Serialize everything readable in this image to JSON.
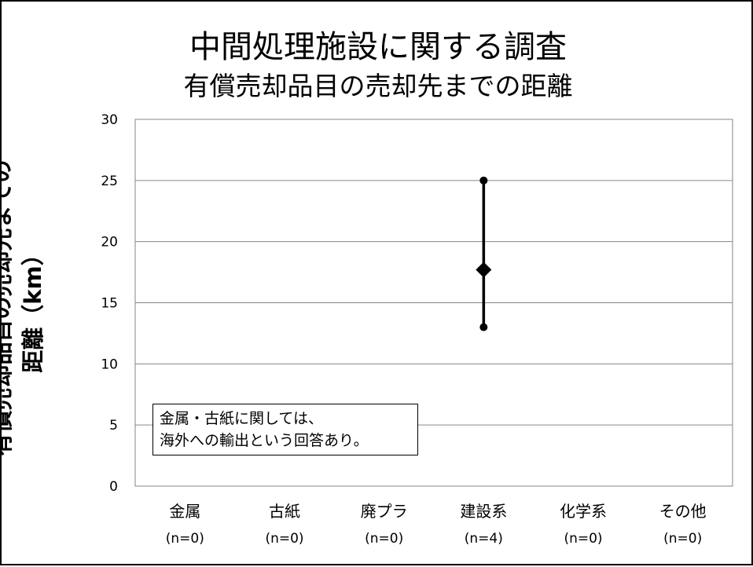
{
  "slide": {
    "title_line1": "中間処理施設に関する調査",
    "title_line2": "有償売却品目の売却先までの距離"
  },
  "note": {
    "line1": "金属・古紙に関しては、",
    "line2": "海外への輸出という回答あり。"
  },
  "chart_data": {
    "type": "scatter",
    "ylabel_line1": "有償売却品目の売却先までの",
    "ylabel_line2": "距離（km）",
    "ylim": [
      0,
      30
    ],
    "yticks": [
      0,
      5,
      10,
      15,
      20,
      25,
      30
    ],
    "grid": true,
    "categories": [
      {
        "name": "金属",
        "n": "(n=0)"
      },
      {
        "name": "古紙",
        "n": "(n=0)"
      },
      {
        "name": "廃プラ",
        "n": "(n=0)"
      },
      {
        "name": "建設系",
        "n": "(n=4)"
      },
      {
        "name": "化学系",
        "n": "(n=0)"
      },
      {
        "name": "その他",
        "n": "(n=0)"
      }
    ],
    "ranges": [
      {
        "category": "建設系",
        "min": 13,
        "max": 25,
        "mean": 17.7
      }
    ],
    "colors": {
      "marker": "#000000",
      "grid": "#868686",
      "axis": "#868686"
    }
  }
}
